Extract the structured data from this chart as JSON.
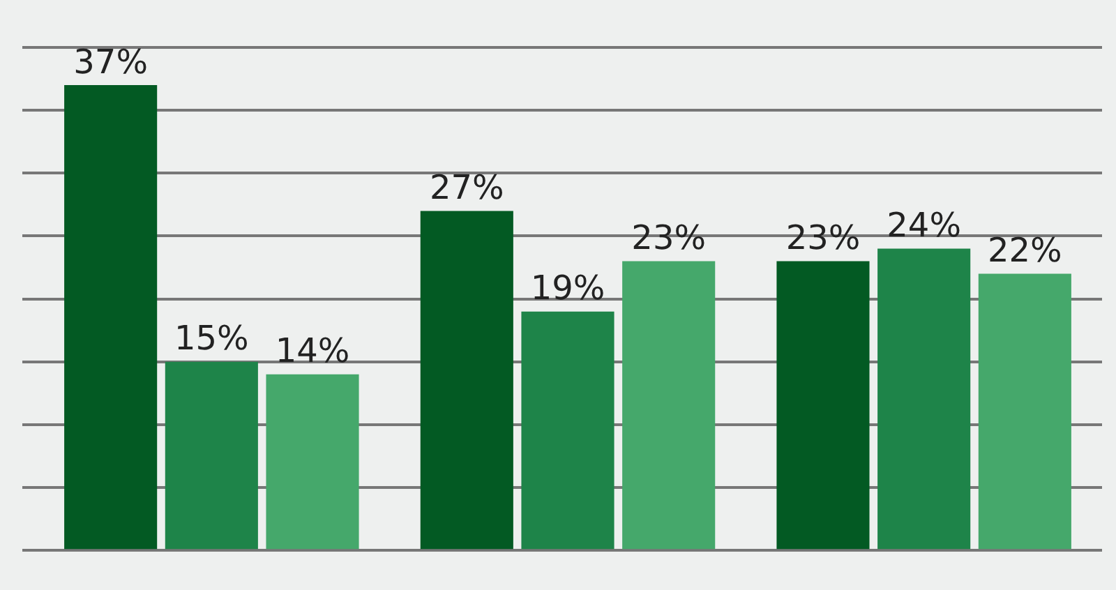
{
  "chart_data": {
    "type": "bar",
    "categories": [
      null,
      null,
      null
    ],
    "series": [
      {
        "color": "#035a23",
        "values": [
          37,
          27,
          23
        ],
        "value_labels": [
          "37%",
          "27%",
          "23%"
        ]
      },
      {
        "color": "#1e8449",
        "values": [
          15,
          19,
          24
        ],
        "value_labels": [
          "15%",
          "19%",
          "24%"
        ]
      },
      {
        "color": "#45a86b",
        "values": [
          14,
          23,
          22
        ],
        "value_labels": [
          "14%",
          "23%",
          "22%"
        ]
      }
    ],
    "ylim": [
      0,
      40
    ],
    "yticks": [
      {
        "value": 0,
        "label": null
      },
      {
        "value": 5,
        "label": null
      },
      {
        "value": 10,
        "label": null
      },
      {
        "value": 15,
        "label": null
      },
      {
        "value": 20,
        "label": null
      },
      {
        "value": 25,
        "label": null
      },
      {
        "value": 30,
        "label": null
      },
      {
        "value": 35,
        "label": null
      },
      {
        "value": 40,
        "label": null
      }
    ],
    "grid": "y",
    "legend": false
  }
}
